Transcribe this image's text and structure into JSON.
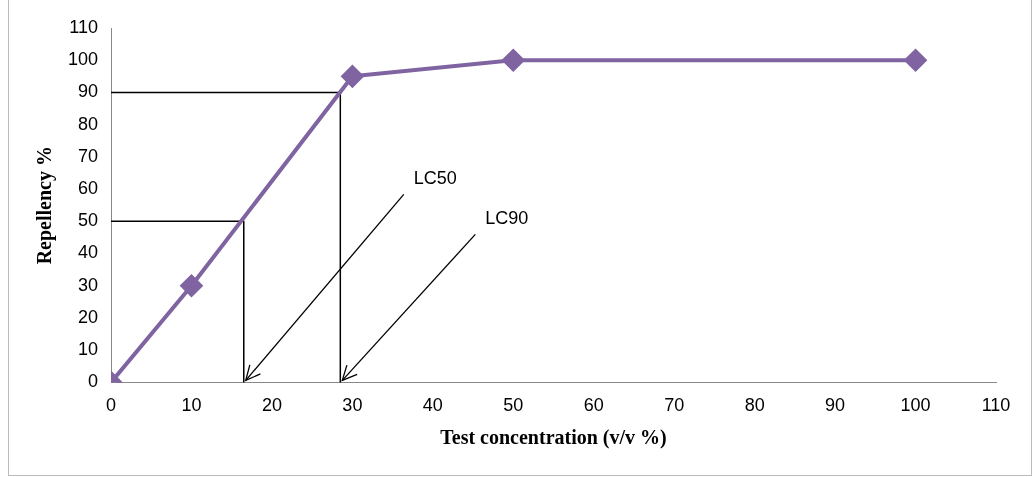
{
  "chart_data": {
    "type": "line",
    "xlabel": "Test concentration (v/v %)",
    "ylabel": "Repellency %",
    "x": [
      0,
      10,
      30,
      50,
      100
    ],
    "series": [
      {
        "color": "#8064a2",
        "values": [
          0,
          30,
          95,
          100,
          100
        ]
      },
      {
        "color": "#000000",
        "x": [
          0,
          16.5,
          16.5
        ],
        "values": [
          50,
          50,
          0
        ],
        "marker": "none"
      },
      {
        "color": "#000000",
        "x": [
          0,
          28.5,
          28.5
        ],
        "values": [
          90,
          90,
          0
        ],
        "marker": "none"
      }
    ],
    "annotations": [
      {
        "text": "LC50",
        "x": 16.5,
        "y": 0
      },
      {
        "text": "LC90",
        "x": 28.5,
        "y": 0
      }
    ],
    "xlim": [
      0,
      110
    ],
    "xticks": [
      0,
      10,
      20,
      30,
      40,
      50,
      60,
      70,
      80,
      90,
      100,
      110
    ],
    "ylim": [
      0,
      110
    ],
    "yticks": [
      0,
      10,
      20,
      30,
      40,
      50,
      60,
      70,
      80,
      90,
      100,
      110
    ],
    "grid": false,
    "legend": false,
    "marker": "diamond",
    "line_style": "solid"
  }
}
